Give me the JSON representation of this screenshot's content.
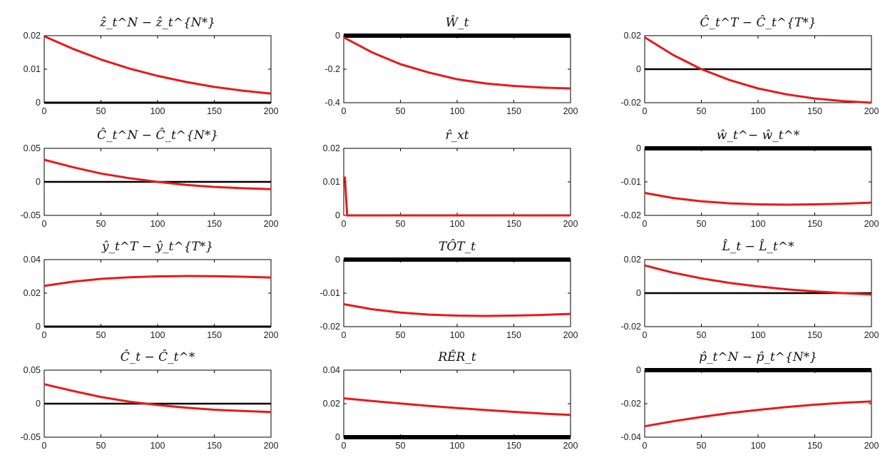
{
  "chart_data": [
    {
      "type": "line",
      "title": "ẑ_t^N − ẑ_t^{N*}",
      "xlim": [
        0,
        200
      ],
      "ylim": [
        0,
        0.02
      ],
      "xticks": [
        "0",
        "50",
        "100",
        "150",
        "200"
      ],
      "yticks": [
        "0",
        "0.01",
        "0.02"
      ],
      "x": [
        0,
        25,
        50,
        75,
        100,
        125,
        150,
        175,
        200
      ],
      "series": [
        {
          "values": [
            0.0198,
            0.0161,
            0.0129,
            0.0102,
            0.008,
            0.0062,
            0.0047,
            0.0036,
            0.0027
          ],
          "color": "#e8191a",
          "width": 3
        },
        {
          "values": [
            0,
            0,
            0,
            0,
            0,
            0,
            0,
            0,
            0
          ],
          "color": "#000000",
          "width": 3
        }
      ]
    },
    {
      "type": "line",
      "title": "Ŵ_t",
      "xlim": [
        0,
        200
      ],
      "ylim": [
        -0.4,
        0
      ],
      "xticks": [
        "0",
        "50",
        "100",
        "150",
        "200"
      ],
      "yticks": [
        "-0.4",
        "-0.2",
        "0"
      ],
      "x": [
        0,
        25,
        50,
        75,
        100,
        125,
        150,
        175,
        200
      ],
      "series": [
        {
          "values": [
            -0.01,
            -0.1,
            -0.17,
            -0.22,
            -0.26,
            -0.285,
            -0.3,
            -0.31,
            -0.315
          ],
          "color": "#e8191a",
          "width": 3
        },
        {
          "values": [
            0,
            0,
            0,
            0,
            0,
            0,
            0,
            0,
            0
          ],
          "color": "#000000",
          "width": 6
        }
      ]
    },
    {
      "type": "line",
      "title": "Ĉ_t^T − Ĉ_t^{T*}",
      "xlim": [
        0,
        200
      ],
      "ylim": [
        -0.02,
        0.02
      ],
      "xticks": [
        "0",
        "50",
        "100",
        "150",
        "200"
      ],
      "yticks": [
        "-0.02",
        "0",
        "0.02"
      ],
      "x": [
        0,
        25,
        50,
        75,
        100,
        125,
        150,
        175,
        200
      ],
      "series": [
        {
          "values": [
            0.019,
            0.0085,
            0.0,
            -0.0065,
            -0.0115,
            -0.015,
            -0.0175,
            -0.019,
            -0.02
          ],
          "color": "#e8191a",
          "width": 3
        },
        {
          "values": [
            0,
            0,
            0,
            0,
            0,
            0,
            0,
            0,
            0
          ],
          "color": "#000000",
          "width": 2.5
        }
      ]
    },
    {
      "type": "line",
      "title": "Ĉ_t^N − Ĉ_t^{N*}",
      "xlim": [
        0,
        200
      ],
      "ylim": [
        -0.05,
        0.05
      ],
      "xticks": [
        "0",
        "50",
        "100",
        "150",
        "200"
      ],
      "yticks": [
        "-0.05",
        "0",
        "0.05"
      ],
      "x": [
        0,
        25,
        50,
        75,
        100,
        125,
        150,
        175,
        200
      ],
      "series": [
        {
          "values": [
            0.033,
            0.022,
            0.0125,
            0.0055,
            0.0,
            -0.0045,
            -0.0075,
            -0.0095,
            -0.011
          ],
          "color": "#e8191a",
          "width": 3
        },
        {
          "values": [
            0,
            0,
            0,
            0,
            0,
            0,
            0,
            0,
            0
          ],
          "color": "#000000",
          "width": 2.5
        }
      ]
    },
    {
      "type": "line",
      "title": "r̂_xt",
      "xlim": [
        0,
        200
      ],
      "ylim": [
        0,
        0.02
      ],
      "xticks": [
        "0",
        "50",
        "100",
        "150",
        "200"
      ],
      "yticks": [
        "0",
        "0.01",
        "0.02"
      ],
      "x": [
        0,
        1,
        3,
        200
      ],
      "series": [
        {
          "values": [
            0.0113,
            0.0113,
            0,
            0
          ],
          "color": "#e8191a",
          "width": 3
        }
      ]
    },
    {
      "type": "line",
      "title": "ŵ_t^− ŵ_t^*",
      "xlim": [
        0,
        200
      ],
      "ylim": [
        -0.02,
        0
      ],
      "xticks": [
        "0",
        "50",
        "100",
        "150",
        "200"
      ],
      "yticks": [
        "-0.02",
        "-0.01",
        "0"
      ],
      "x": [
        0,
        25,
        50,
        75,
        100,
        125,
        150,
        175,
        200
      ],
      "series": [
        {
          "values": [
            -0.0133,
            -0.0148,
            -0.0158,
            -0.0164,
            -0.0167,
            -0.0168,
            -0.0167,
            -0.0165,
            -0.0162
          ],
          "color": "#e8191a",
          "width": 3
        },
        {
          "values": [
            0,
            0,
            0,
            0,
            0,
            0,
            0,
            0,
            0
          ],
          "color": "#000000",
          "width": 6
        }
      ]
    },
    {
      "type": "line",
      "title": "ŷ_t^T − ŷ_t^{T*}",
      "xlim": [
        0,
        200
      ],
      "ylim": [
        0,
        0.04
      ],
      "xticks": [
        "0",
        "50",
        "100",
        "150",
        "200"
      ],
      "yticks": [
        "0",
        "0.02",
        "0.04"
      ],
      "x": [
        0,
        25,
        50,
        75,
        100,
        125,
        150,
        175,
        200
      ],
      "series": [
        {
          "values": [
            0.0243,
            0.0268,
            0.0285,
            0.0295,
            0.03,
            0.0302,
            0.0301,
            0.0298,
            0.0293
          ],
          "color": "#e8191a",
          "width": 3
        },
        {
          "values": [
            0,
            0,
            0,
            0,
            0,
            0,
            0,
            0,
            0
          ],
          "color": "#000000",
          "width": 3
        }
      ]
    },
    {
      "type": "line",
      "title": "TÔT_t",
      "xlim": [
        0,
        200
      ],
      "ylim": [
        -0.02,
        0
      ],
      "xticks": [
        "0",
        "50",
        "100",
        "150",
        "200"
      ],
      "yticks": [
        "-0.02",
        "-0.01",
        "0"
      ],
      "x": [
        0,
        25,
        50,
        75,
        100,
        125,
        150,
        175,
        200
      ],
      "series": [
        {
          "values": [
            -0.0133,
            -0.0148,
            -0.0158,
            -0.0164,
            -0.0167,
            -0.0168,
            -0.0167,
            -0.0165,
            -0.0162
          ],
          "color": "#e8191a",
          "width": 3
        },
        {
          "values": [
            0,
            0,
            0,
            0,
            0,
            0,
            0,
            0,
            0
          ],
          "color": "#000000",
          "width": 6
        }
      ]
    },
    {
      "type": "line",
      "title": "L̂_t − L̂_t^*",
      "xlim": [
        0,
        200
      ],
      "ylim": [
        -0.02,
        0.02
      ],
      "xticks": [
        "0",
        "50",
        "100",
        "150",
        "200"
      ],
      "yticks": [
        "-0.02",
        "0",
        "0.02"
      ],
      "x": [
        0,
        25,
        50,
        75,
        100,
        125,
        150,
        175,
        200
      ],
      "series": [
        {
          "values": [
            0.0165,
            0.0122,
            0.0088,
            0.0061,
            0.004,
            0.0023,
            0.001,
            0.0,
            -0.0008
          ],
          "color": "#e8191a",
          "width": 3
        },
        {
          "values": [
            0,
            0,
            0,
            0,
            0,
            0,
            0,
            0,
            0
          ],
          "color": "#000000",
          "width": 2.5
        }
      ]
    },
    {
      "type": "line",
      "title": "Ĉ_t − Ĉ_t^*",
      "xlim": [
        0,
        200
      ],
      "ylim": [
        -0.05,
        0.05
      ],
      "xticks": [
        "0",
        "50",
        "100",
        "150",
        "200"
      ],
      "yticks": [
        "-0.05",
        "0",
        "0.05"
      ],
      "x": [
        0,
        25,
        50,
        75,
        100,
        125,
        150,
        175,
        200
      ],
      "series": [
        {
          "values": [
            0.029,
            0.019,
            0.01,
            0.003,
            -0.002,
            -0.006,
            -0.009,
            -0.011,
            -0.0125
          ],
          "color": "#e8191a",
          "width": 3
        },
        {
          "values": [
            0,
            0,
            0,
            0,
            0,
            0,
            0,
            0,
            0
          ],
          "color": "#000000",
          "width": 2.5
        }
      ]
    },
    {
      "type": "line",
      "title": "RÊR_t",
      "xlim": [
        0,
        200
      ],
      "ylim": [
        0,
        0.04
      ],
      "xticks": [
        "0",
        "50",
        "100",
        "150",
        "200"
      ],
      "yticks": [
        "0",
        "0.02",
        "0.04"
      ],
      "x": [
        0,
        25,
        50,
        75,
        100,
        125,
        150,
        175,
        200
      ],
      "series": [
        {
          "values": [
            0.0232,
            0.0216,
            0.0201,
            0.0187,
            0.0174,
            0.0162,
            0.0151,
            0.0141,
            0.0133
          ],
          "color": "#e8191a",
          "width": 3
        },
        {
          "values": [
            0,
            0,
            0,
            0,
            0,
            0,
            0,
            0,
            0
          ],
          "color": "#000000",
          "width": 6
        }
      ]
    },
    {
      "type": "line",
      "title": "p̂_t^N − p̂_t^{N*}",
      "xlim": [
        0,
        200
      ],
      "ylim": [
        -0.04,
        0
      ],
      "xticks": [
        "0",
        "50",
        "100",
        "150",
        "200"
      ],
      "yticks": [
        "-0.04",
        "-0.02",
        "0"
      ],
      "x": [
        0,
        25,
        50,
        75,
        100,
        125,
        150,
        175,
        200
      ],
      "series": [
        {
          "values": [
            -0.0335,
            -0.0305,
            -0.0279,
            -0.0256,
            -0.0237,
            -0.022,
            -0.0206,
            -0.0195,
            -0.0187
          ],
          "color": "#e8191a",
          "width": 3
        },
        {
          "values": [
            0,
            0,
            0,
            0,
            0,
            0,
            0,
            0,
            0
          ],
          "color": "#000000",
          "width": 6
        }
      ]
    }
  ]
}
